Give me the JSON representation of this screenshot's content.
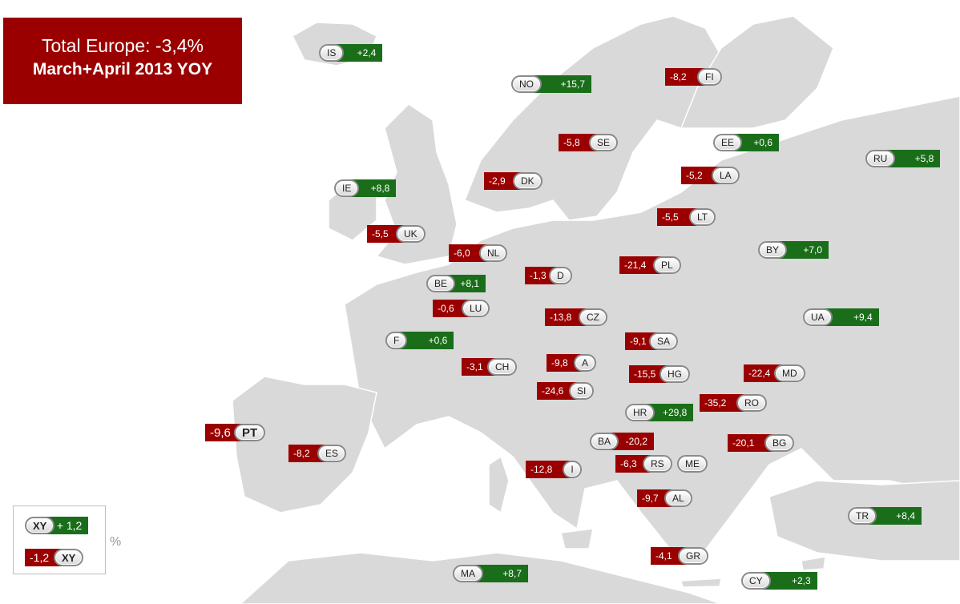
{
  "title": {
    "line1": "Total Europe: -3,4%",
    "line2": "March+April 2013 YOY"
  },
  "colors": {
    "positive": "#1a6e1a",
    "negative": "#9a0000",
    "land": "#d9d9d9"
  },
  "countries": [
    {
      "code": "IS",
      "value": "+2,4",
      "sign": "pos"
    },
    {
      "code": "NO",
      "value": "+15,7",
      "sign": "pos"
    },
    {
      "code": "FI",
      "value": "-8,2",
      "sign": "neg"
    },
    {
      "code": "SE",
      "value": "-5,8",
      "sign": "neg"
    },
    {
      "code": "EE",
      "value": "+0,6",
      "sign": "pos"
    },
    {
      "code": "RU",
      "value": "+5,8",
      "sign": "pos"
    },
    {
      "code": "LA",
      "value": "-5,2",
      "sign": "neg"
    },
    {
      "code": "IE",
      "value": "+8,8",
      "sign": "pos"
    },
    {
      "code": "DK",
      "value": "-2,9",
      "sign": "neg"
    },
    {
      "code": "LT",
      "value": "-5,5",
      "sign": "neg"
    },
    {
      "code": "UK",
      "value": "-5,5",
      "sign": "neg"
    },
    {
      "code": "NL",
      "value": "-6,0",
      "sign": "neg"
    },
    {
      "code": "BY",
      "value": "+7,0",
      "sign": "pos"
    },
    {
      "code": "PL",
      "value": "-21,4",
      "sign": "neg"
    },
    {
      "code": "D",
      "value": "-1,3",
      "sign": "neg"
    },
    {
      "code": "BE",
      "value": "+8,1",
      "sign": "pos"
    },
    {
      "code": "LU",
      "value": "-0,6",
      "sign": "neg"
    },
    {
      "code": "CZ",
      "value": "-13,8",
      "sign": "neg"
    },
    {
      "code": "UA",
      "value": "+9,4",
      "sign": "pos"
    },
    {
      "code": "F",
      "value": "+0,6",
      "sign": "pos"
    },
    {
      "code": "SA",
      "value": "-9,1",
      "sign": "neg"
    },
    {
      "code": "CH",
      "value": "-3,1",
      "sign": "neg"
    },
    {
      "code": "A",
      "value": "-9,8",
      "sign": "neg"
    },
    {
      "code": "HG",
      "value": "-15,5",
      "sign": "neg"
    },
    {
      "code": "MD",
      "value": "-22,4",
      "sign": "neg"
    },
    {
      "code": "SI",
      "value": "-24,6",
      "sign": "neg"
    },
    {
      "code": "RO",
      "value": "-35,2",
      "sign": "neg"
    },
    {
      "code": "HR",
      "value": "+29,8",
      "sign": "pos"
    },
    {
      "code": "PT",
      "value": "-9,6",
      "sign": "neg"
    },
    {
      "code": "BA",
      "value": "-20,2",
      "sign": "pos-lbl-neg"
    },
    {
      "code": "BG",
      "value": "-20,1",
      "sign": "neg"
    },
    {
      "code": "ES",
      "value": "-8,2",
      "sign": "neg"
    },
    {
      "code": "I",
      "value": "-12,8",
      "sign": "neg"
    },
    {
      "code": "RS",
      "value": "-6,3",
      "sign": "neg"
    },
    {
      "code": "ME",
      "value": "",
      "sign": "none"
    },
    {
      "code": "AL",
      "value": "-9,7",
      "sign": "neg"
    },
    {
      "code": "TR",
      "value": "+8,4",
      "sign": "pos"
    },
    {
      "code": "GR",
      "value": "-4,1",
      "sign": "neg"
    },
    {
      "code": "MA",
      "value": "+8,7",
      "sign": "pos"
    },
    {
      "code": "CY",
      "value": "+2,3",
      "sign": "pos"
    }
  ],
  "legend": {
    "pos_code": "XY",
    "pos_value": "+ 1,2",
    "neg_code": "XY",
    "neg_value": "-1,2",
    "unit": "%"
  }
}
